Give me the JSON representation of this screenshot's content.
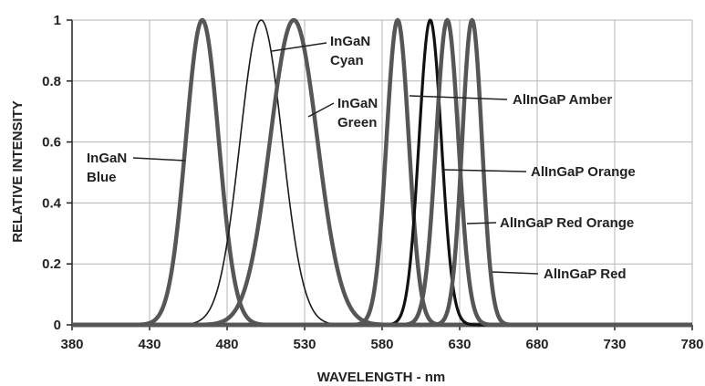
{
  "chart_data": {
    "type": "line",
    "title": "",
    "xlabel": "WAVELENGTH - nm",
    "ylabel": "RELATIVE INTENSITY",
    "xlim": [
      380,
      780
    ],
    "ylim": [
      0,
      1
    ],
    "x_ticks": [
      380,
      430,
      480,
      530,
      580,
      630,
      680,
      730,
      780
    ],
    "x_tick_labels": [
      "380",
      "430",
      "480",
      "530",
      "580",
      "630",
      "680",
      "730",
      "780"
    ],
    "y_ticks": [
      0,
      0.2,
      0.4,
      0.6,
      0.8,
      1
    ],
    "y_tick_labels": [
      "0",
      "0.2",
      "0.4",
      "0.6",
      "0.8",
      "1"
    ],
    "grid": true,
    "legend": "none",
    "series": [
      {
        "name": "InGaN Blue",
        "peak": 464,
        "fwhm": 25,
        "color": "#565656",
        "style": "thick"
      },
      {
        "name": "InGaN Cyan",
        "peak": 502,
        "fwhm": 32,
        "color": "#1a1a1a",
        "style": "thin"
      },
      {
        "name": "InGaN Green",
        "peak": 523,
        "fwhm": 36,
        "color": "#565656",
        "style": "thick"
      },
      {
        "name": "AlInGaP Amber",
        "peak": 590,
        "fwhm": 17,
        "color": "#565656",
        "style": "thick"
      },
      {
        "name": "AlInGaP Orange",
        "peak": 611,
        "fwhm": 17,
        "color": "#111111",
        "style": "black"
      },
      {
        "name": "AlInGaP Red Orange",
        "peak": 622,
        "fwhm": 17,
        "color": "#565656",
        "style": "thick"
      },
      {
        "name": "AlInGaP Red",
        "peak": 638,
        "fwhm": 15,
        "color": "#565656",
        "style": "thick"
      }
    ],
    "annotations": [
      {
        "lines": [
          "InGaN",
          "Blue"
        ]
      },
      {
        "lines": [
          "InGaN",
          "Cyan"
        ]
      },
      {
        "lines": [
          "InGaN",
          "Green"
        ]
      },
      {
        "lines": [
          "AlInGaP Amber"
        ]
      },
      {
        "lines": [
          "AlInGaP Orange"
        ]
      },
      {
        "lines": [
          "AlInGaP Red Orange"
        ]
      },
      {
        "lines": [
          "AlInGaP Red"
        ]
      }
    ]
  }
}
